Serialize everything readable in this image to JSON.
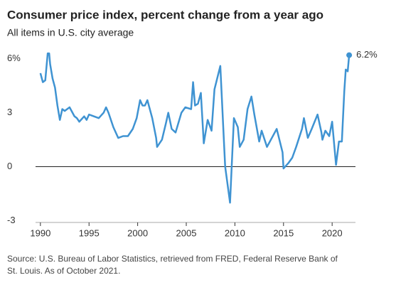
{
  "chart_data": {
    "type": "line",
    "title": "Consumer price index, percent change from a year ago",
    "subtitle": "All items in U.S. city average",
    "source": [
      "Source: U.S. Bureau of Labor Statistics, retrieved from FRED, Federal Reserve Bank of",
      "St. Louis. As of October 2021."
    ],
    "x": [
      1990.0,
      1990.25,
      1990.5,
      1990.75,
      1990.9,
      1991.0,
      1991.25,
      1991.5,
      1991.75,
      1992.0,
      1992.25,
      1992.5,
      1992.75,
      1993.0,
      1993.5,
      1993.75,
      1994.0,
      1994.5,
      1994.75,
      1995.0,
      1995.5,
      1996.0,
      1996.5,
      1996.75,
      1997.0,
      1997.5,
      1998.0,
      1998.5,
      1999.0,
      1999.5,
      1999.9,
      2000.25,
      2000.5,
      2000.75,
      2001.0,
      2001.5,
      2001.9,
      2002.0,
      2002.5,
      2002.9,
      2003.15,
      2003.5,
      2003.9,
      2004.5,
      2004.9,
      2005.5,
      2005.7,
      2005.9,
      2006.2,
      2006.5,
      2006.8,
      2007.2,
      2007.6,
      2007.9,
      2008.5,
      2008.9,
      2009.0,
      2009.5,
      2009.9,
      2010.3,
      2010.5,
      2010.9,
      2011.3,
      2011.7,
      2012.0,
      2012.5,
      2012.75,
      2013.3,
      2013.7,
      2014.3,
      2014.9,
      2015.0,
      2015.5,
      2015.9,
      2016.3,
      2016.9,
      2017.1,
      2017.5,
      2017.9,
      2018.5,
      2018.9,
      2019.0,
      2019.3,
      2019.7,
      2020.0,
      2020.4,
      2020.7,
      2021.0,
      2021.25,
      2021.4,
      2021.6,
      2021.75
    ],
    "series": [
      {
        "name": "CPI",
        "color": "#3f93d2",
        "values": [
          5.2,
          4.7,
          4.8,
          6.3,
          6.3,
          5.7,
          4.9,
          4.4,
          3.4,
          2.6,
          3.2,
          3.1,
          3.2,
          3.3,
          2.8,
          2.7,
          2.5,
          2.8,
          2.6,
          2.9,
          2.8,
          2.7,
          3.0,
          3.3,
          3.0,
          2.2,
          1.6,
          1.7,
          1.7,
          2.1,
          2.7,
          3.7,
          3.4,
          3.4,
          3.7,
          2.7,
          1.6,
          1.1,
          1.5,
          2.4,
          3.0,
          2.1,
          1.9,
          3.0,
          3.3,
          3.2,
          4.7,
          3.4,
          3.5,
          4.1,
          1.3,
          2.6,
          2.0,
          4.3,
          5.6,
          1.1,
          0.0,
          -2.0,
          2.7,
          2.2,
          1.1,
          1.5,
          3.2,
          3.9,
          2.9,
          1.4,
          2.0,
          1.1,
          1.5,
          2.1,
          0.8,
          -0.1,
          0.2,
          0.5,
          1.1,
          2.1,
          2.7,
          1.6,
          2.1,
          2.9,
          1.9,
          1.5,
          2.0,
          1.7,
          2.5,
          0.1,
          1.4,
          1.4,
          4.2,
          5.4,
          5.3,
          6.2
        ]
      }
    ],
    "end_label": "6.2%",
    "xlim": [
      1989.5,
      2022.4
    ],
    "ylim": [
      -3.1,
      6.5
    ],
    "xticks": [
      1990,
      1995,
      2000,
      2005,
      2010,
      2015,
      2020
    ],
    "yticks": [
      -3,
      0,
      3,
      {
        "value": 6,
        "label": "6%"
      }
    ]
  }
}
